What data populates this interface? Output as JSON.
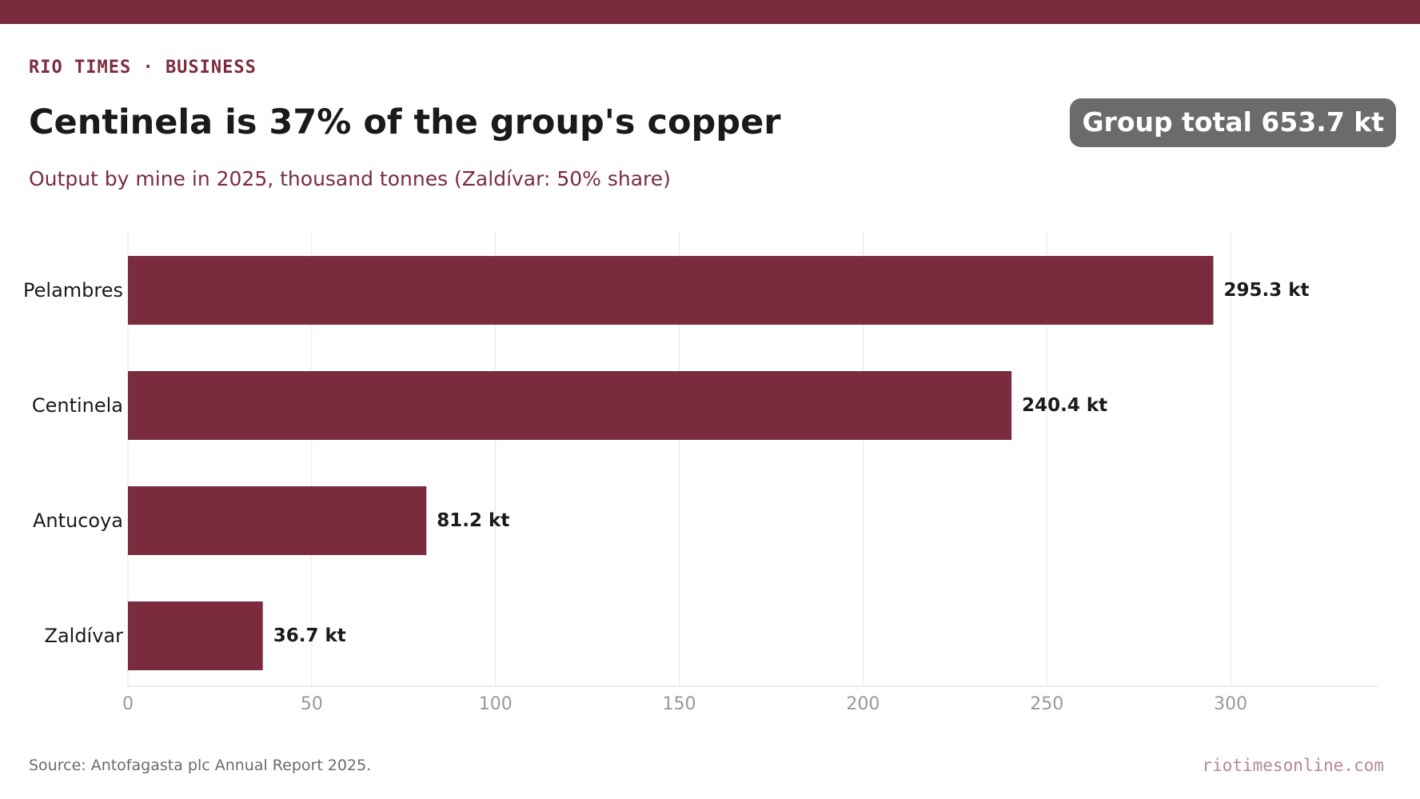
{
  "header": {
    "kicker": "RIO TIMES · BUSINESS",
    "title": "Centinela is 37% of the group's copper",
    "subtitle": "Output by mine in 2025, thousand tonnes (Zaldívar: 50% share)",
    "badge": "Group total 653.7 kt"
  },
  "footer": {
    "source": "Source: Antofagasta plc Annual Report 2025.",
    "site": "riotimesonline.com"
  },
  "colors": {
    "accent": "#7a2c3e",
    "bar": "#7a2c3e",
    "badge_bg": "#6b6b6b",
    "grid": "#e6e6e6",
    "tick_text": "#999999"
  },
  "chart_data": {
    "type": "bar",
    "orientation": "horizontal",
    "categories": [
      "Pelambres",
      "Centinela",
      "Antucoya",
      "Zaldívar"
    ],
    "values": [
      295.3,
      240.4,
      81.2,
      36.7
    ],
    "value_labels": [
      "295.3 kt",
      "240.4 kt",
      "81.2 kt",
      "36.7 kt"
    ],
    "xlim": [
      0,
      340
    ],
    "xticks": [
      0,
      50,
      100,
      150,
      200,
      250,
      300
    ],
    "grid": true,
    "legend": "none"
  }
}
